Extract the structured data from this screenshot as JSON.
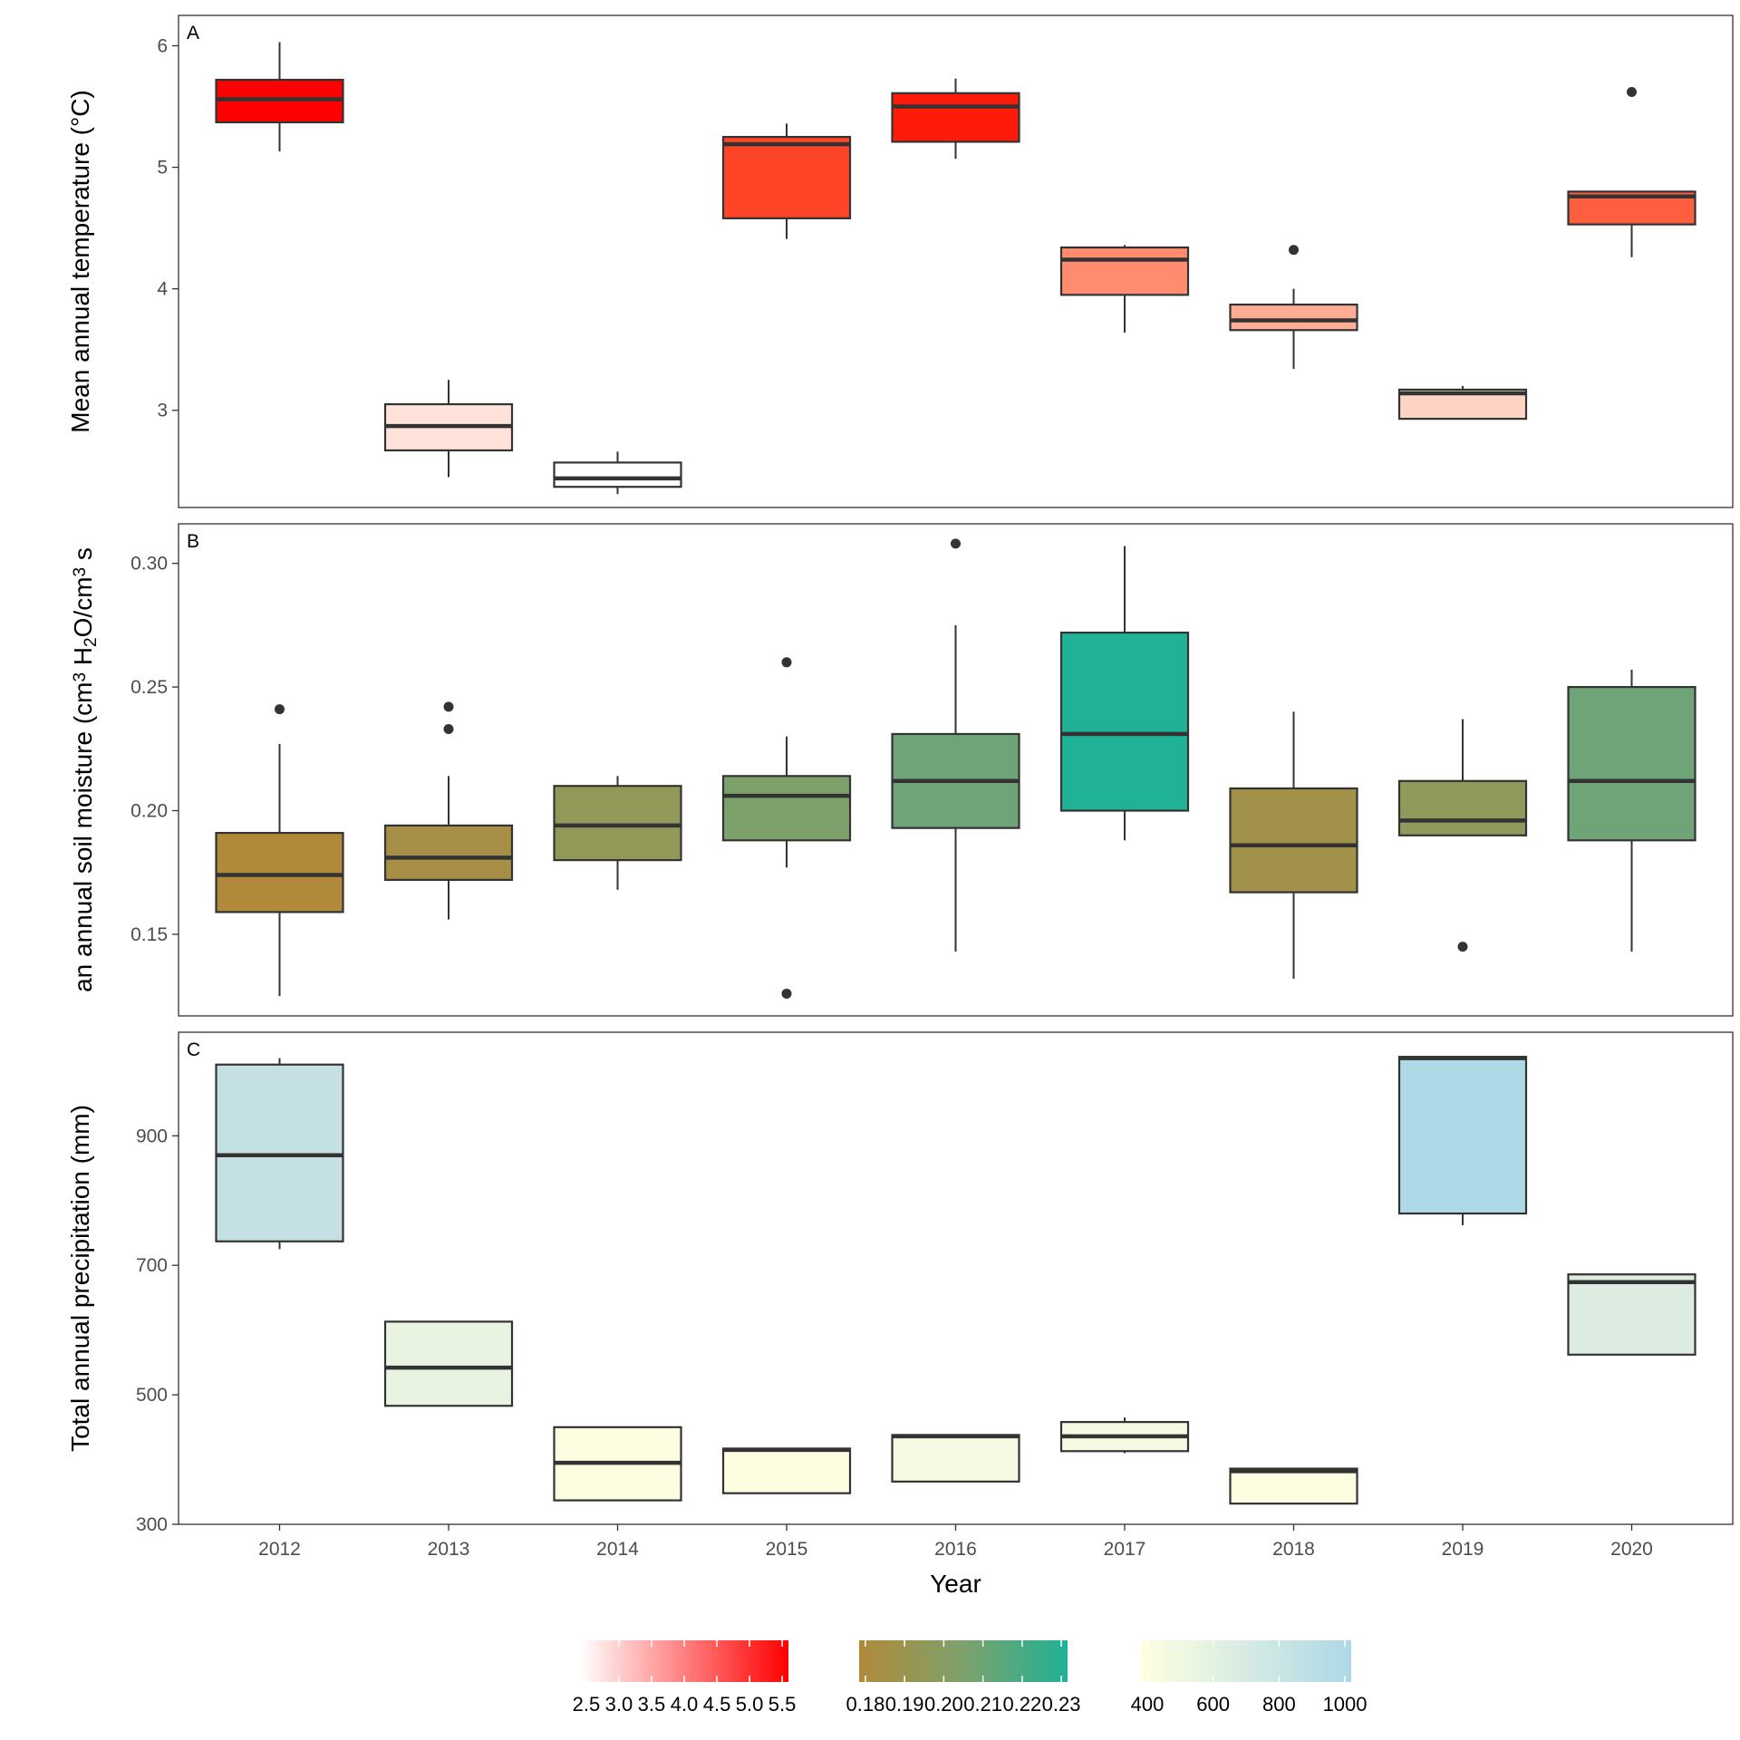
{
  "chart_data": {
    "type": "box",
    "categories": [
      "2012",
      "2013",
      "2014",
      "2015",
      "2016",
      "2017",
      "2018",
      "2019",
      "2020"
    ],
    "xlabel": "Year",
    "panels": [
      {
        "tag": "A",
        "ylabel": "Mean annual temperature (°C)",
        "ylim": [
          2.2,
          6.25
        ],
        "yticks": [
          3,
          4,
          5,
          6
        ],
        "ytick_labels": [
          "3",
          "4",
          "5",
          "6"
        ],
        "boxes": [
          {
            "year": "2012",
            "whisker_low": 5.13,
            "q1": 5.37,
            "median": 5.56,
            "q3": 5.72,
            "whisker_high": 6.03,
            "outliers": [],
            "fill": "#ff0000"
          },
          {
            "year": "2013",
            "whisker_low": 2.45,
            "q1": 2.67,
            "median": 2.87,
            "q3": 3.05,
            "whisker_high": 3.25,
            "outliers": [],
            "fill": "#ffe2d9"
          },
          {
            "year": "2014",
            "whisker_low": 2.31,
            "q1": 2.37,
            "median": 2.44,
            "q3": 2.57,
            "whisker_high": 2.66,
            "outliers": [],
            "fill": "#ffffff"
          },
          {
            "year": "2015",
            "whisker_low": 4.41,
            "q1": 4.58,
            "median": 5.19,
            "q3": 5.25,
            "whisker_high": 5.36,
            "outliers": [],
            "fill": "#ff4528"
          },
          {
            "year": "2016",
            "whisker_low": 5.07,
            "q1": 5.21,
            "median": 5.5,
            "q3": 5.61,
            "whisker_high": 5.73,
            "outliers": [],
            "fill": "#ff1a0a"
          },
          {
            "year": "2017",
            "whisker_low": 3.64,
            "q1": 3.95,
            "median": 4.24,
            "q3": 4.34,
            "whisker_high": 4.36,
            "outliers": [],
            "fill": "#ff8c6e"
          },
          {
            "year": "2018",
            "whisker_low": 3.34,
            "q1": 3.66,
            "median": 3.74,
            "q3": 3.87,
            "whisker_high": 4.0,
            "outliers": [
              4.32
            ],
            "fill": "#ffac94"
          },
          {
            "year": "2019",
            "whisker_low": 2.93,
            "q1": 2.93,
            "median": 3.14,
            "q3": 3.17,
            "whisker_high": 3.2,
            "outliers": [],
            "fill": "#ffd4c4"
          },
          {
            "year": "2020",
            "whisker_low": 4.26,
            "q1": 4.53,
            "median": 4.76,
            "q3": 4.8,
            "whisker_high": 4.8,
            "outliers": [
              5.62
            ],
            "fill": "#ff5f3e"
          }
        ]
      },
      {
        "tag": "B",
        "ylabel_parts": [
          "an annual soil moisture (cm",
          "3",
          " H",
          "2",
          "O/cm",
          "3",
          " s"
        ],
        "ylim": [
          0.117,
          0.316
        ],
        "yticks": [
          0.15,
          0.2,
          0.25,
          0.3
        ],
        "ytick_labels": [
          "0.15",
          "0.20",
          "0.25",
          "0.30"
        ],
        "boxes": [
          {
            "year": "2012",
            "whisker_low": 0.125,
            "q1": 0.159,
            "median": 0.174,
            "q3": 0.191,
            "whisker_high": 0.227,
            "outliers": [
              0.241
            ],
            "fill": "#b08a3a"
          },
          {
            "year": "2013",
            "whisker_low": 0.156,
            "q1": 0.172,
            "median": 0.181,
            "q3": 0.194,
            "whisker_high": 0.214,
            "outliers": [
              0.233,
              0.242
            ],
            "fill": "#a68e46"
          },
          {
            "year": "2014",
            "whisker_low": 0.168,
            "q1": 0.18,
            "median": 0.194,
            "q3": 0.21,
            "whisker_high": 0.214,
            "outliers": [],
            "fill": "#929857"
          },
          {
            "year": "2015",
            "whisker_low": 0.177,
            "q1": 0.188,
            "median": 0.206,
            "q3": 0.214,
            "whisker_high": 0.23,
            "outliers": [
              0.126,
              0.26
            ],
            "fill": "#7ea16b"
          },
          {
            "year": "2016",
            "whisker_low": 0.143,
            "q1": 0.193,
            "median": 0.212,
            "q3": 0.231,
            "whisker_high": 0.275,
            "outliers": [
              0.308
            ],
            "fill": "#6ea478"
          },
          {
            "year": "2017",
            "whisker_low": 0.188,
            "q1": 0.2,
            "median": 0.231,
            "q3": 0.272,
            "whisker_high": 0.307,
            "outliers": [],
            "fill": "#1fb296"
          },
          {
            "year": "2018",
            "whisker_low": 0.132,
            "q1": 0.167,
            "median": 0.186,
            "q3": 0.209,
            "whisker_high": 0.24,
            "outliers": [],
            "fill": "#a29249"
          },
          {
            "year": "2019",
            "whisker_low": 0.19,
            "q1": 0.19,
            "median": 0.196,
            "q3": 0.212,
            "whisker_high": 0.237,
            "outliers": [
              0.145
            ],
            "fill": "#8e9a5c"
          },
          {
            "year": "2020",
            "whisker_low": 0.143,
            "q1": 0.188,
            "median": 0.212,
            "q3": 0.25,
            "whisker_high": 0.257,
            "outliers": [],
            "fill": "#6ea478"
          }
        ]
      },
      {
        "tag": "C",
        "ylabel": "Total annual precipitation (mm)",
        "ylim": [
          300,
          1060
        ],
        "yticks": [
          300,
          500,
          700,
          900
        ],
        "ytick_labels": [
          "300",
          "500",
          "700",
          "900"
        ],
        "boxes": [
          {
            "year": "2012",
            "whisker_low": 725,
            "q1": 737,
            "median": 870,
            "q3": 1010,
            "whisker_high": 1020,
            "outliers": [],
            "fill": "#c5e0e3"
          },
          {
            "year": "2013",
            "whisker_low": 483,
            "q1": 483,
            "median": 542,
            "q3": 613,
            "whisker_high": 613,
            "outliers": [],
            "fill": "#e9f3e2"
          },
          {
            "year": "2014",
            "whisker_low": 337,
            "q1": 337,
            "median": 395,
            "q3": 450,
            "whisker_high": 450,
            "outliers": [],
            "fill": "#fdfde1"
          },
          {
            "year": "2015",
            "whisker_low": 348,
            "q1": 348,
            "median": 415,
            "q3": 417,
            "whisker_high": 417,
            "outliers": [],
            "fill": "#fcfde1"
          },
          {
            "year": "2016",
            "whisker_low": 366,
            "q1": 366,
            "median": 436,
            "q3": 438,
            "whisker_high": 438,
            "outliers": [],
            "fill": "#f6fae2"
          },
          {
            "year": "2017",
            "whisker_low": 410,
            "q1": 413,
            "median": 436,
            "q3": 458,
            "whisker_high": 465,
            "outliers": [],
            "fill": "#f7fae2"
          },
          {
            "year": "2018",
            "whisker_low": 332,
            "q1": 332,
            "median": 382,
            "q3": 386,
            "whisker_high": 386,
            "outliers": [],
            "fill": "#fdfddf"
          },
          {
            "year": "2019",
            "whisker_low": 762,
            "q1": 780,
            "median": 1020,
            "q3": 1022,
            "whisker_high": 1022,
            "outliers": [],
            "fill": "#add8e6"
          },
          {
            "year": "2020",
            "whisker_low": 562,
            "q1": 562,
            "median": 674,
            "q3": 686,
            "whisker_high": 686,
            "outliers": [],
            "fill": "#dcece1"
          }
        ]
      }
    ],
    "legends": [
      {
        "colors": [
          "#ffffff",
          "#ff0000"
        ],
        "labels": [
          "2.5",
          "3.0",
          "3.5",
          "4.0",
          "4.5",
          "5.0",
          "5.5"
        ],
        "placement": "bottom"
      },
      {
        "colors": [
          "#b08a3a",
          "#7ea16b",
          "#1fb296"
        ],
        "labels": [
          "0.18",
          "0.19",
          "0.20",
          "0.21",
          "0.22",
          "0.23"
        ],
        "placement": "bottom"
      },
      {
        "colors": [
          "#ffffe0",
          "#add8e6"
        ],
        "labels": [
          "400",
          "600",
          "800",
          "1000"
        ],
        "placement": "bottom"
      }
    ]
  }
}
